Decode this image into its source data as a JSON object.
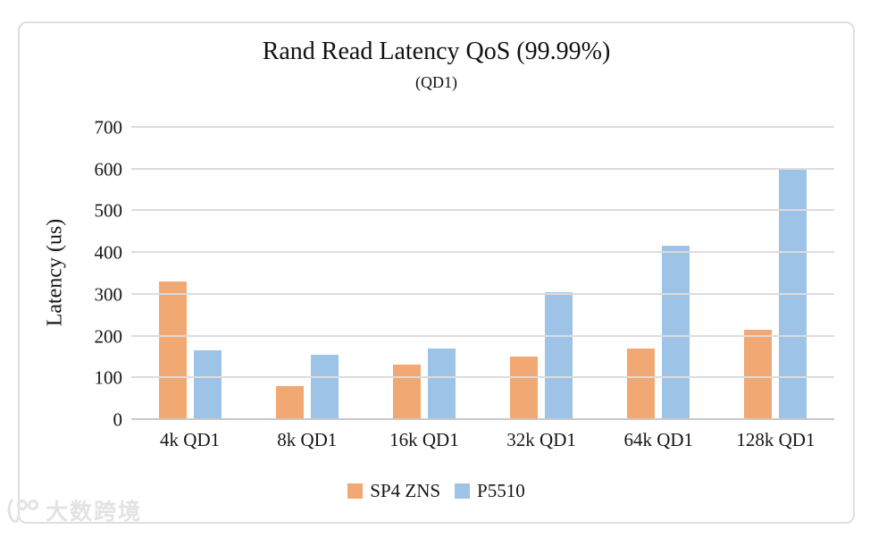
{
  "chart_data": {
    "type": "bar",
    "title": "Rand Read Latency QoS (99.99%)",
    "subtitle": "(QD1)",
    "ylabel": "Latency  (us)",
    "categories": [
      "4k QD1",
      "8k QD1",
      "16k QD1",
      "32k QD1",
      "64k QD1",
      "128k QD1"
    ],
    "series": [
      {
        "name": "SP4 ZNS",
        "color": "#F2A873",
        "values": [
          330,
          80,
          130,
          150,
          170,
          215
        ]
      },
      {
        "name": "P5510",
        "color": "#9DC3E6",
        "values": [
          165,
          155,
          170,
          305,
          415,
          600
        ]
      }
    ],
    "ylim": [
      0,
      700
    ],
    "yticks": [
      0,
      100,
      200,
      300,
      400,
      500,
      600,
      700
    ],
    "grid": true,
    "legend_position": "bottom"
  },
  "watermark": {
    "icon": "dashukuajing-logo",
    "text": "大数跨境"
  }
}
